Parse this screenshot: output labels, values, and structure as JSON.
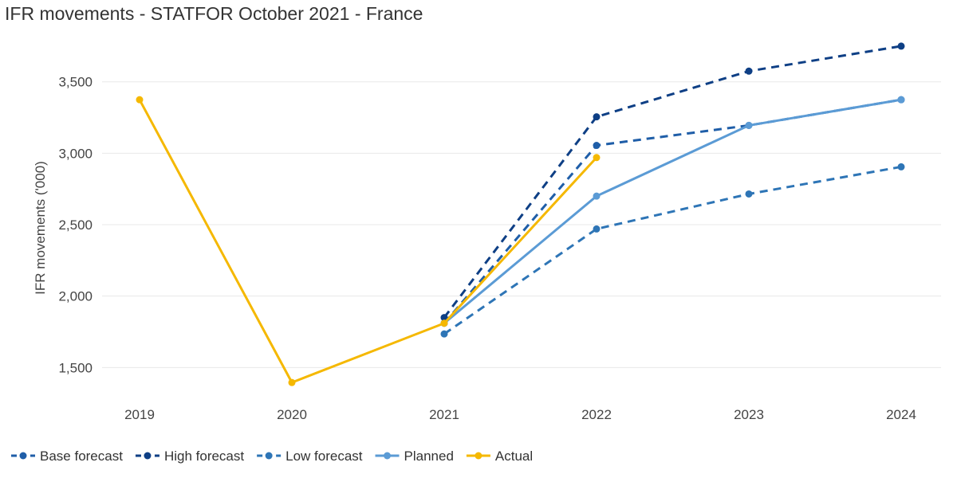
{
  "chart_data": {
    "type": "line",
    "title": "IFR movements - STATFOR October 2021 - France",
    "ylabel": "IFR movements ('000)",
    "xlabel": "",
    "categories": [
      "2019",
      "2020",
      "2021",
      "2022",
      "2023",
      "2024"
    ],
    "y_ticks": [
      "1,500",
      "2,000",
      "2,500",
      "3,000",
      "3,500"
    ],
    "y_tick_values": [
      1500,
      2000,
      2500,
      3000,
      3500
    ],
    "ylim": [
      1340,
      3850
    ],
    "grid": "horizontal",
    "legend_position": "bottom-left",
    "series": [
      {
        "name": "Base forecast",
        "color": "#1f5ea8",
        "dash": true,
        "values": [
          null,
          null,
          1810,
          3055,
          3195,
          3375
        ]
      },
      {
        "name": "High forecast",
        "color": "#0e3f85",
        "dash": true,
        "values": [
          null,
          null,
          1850,
          3255,
          3575,
          3750
        ]
      },
      {
        "name": "Low forecast",
        "color": "#2e75b6",
        "dash": true,
        "values": [
          null,
          null,
          1735,
          2470,
          2715,
          2905
        ]
      },
      {
        "name": "Planned",
        "color": "#5b9bd5",
        "dash": false,
        "values": [
          null,
          null,
          1810,
          2700,
          3195,
          3375
        ]
      },
      {
        "name": "Actual",
        "color": "#f5b800",
        "dash": false,
        "values": [
          3375,
          1395,
          1810,
          2970,
          null,
          null
        ]
      }
    ]
  }
}
